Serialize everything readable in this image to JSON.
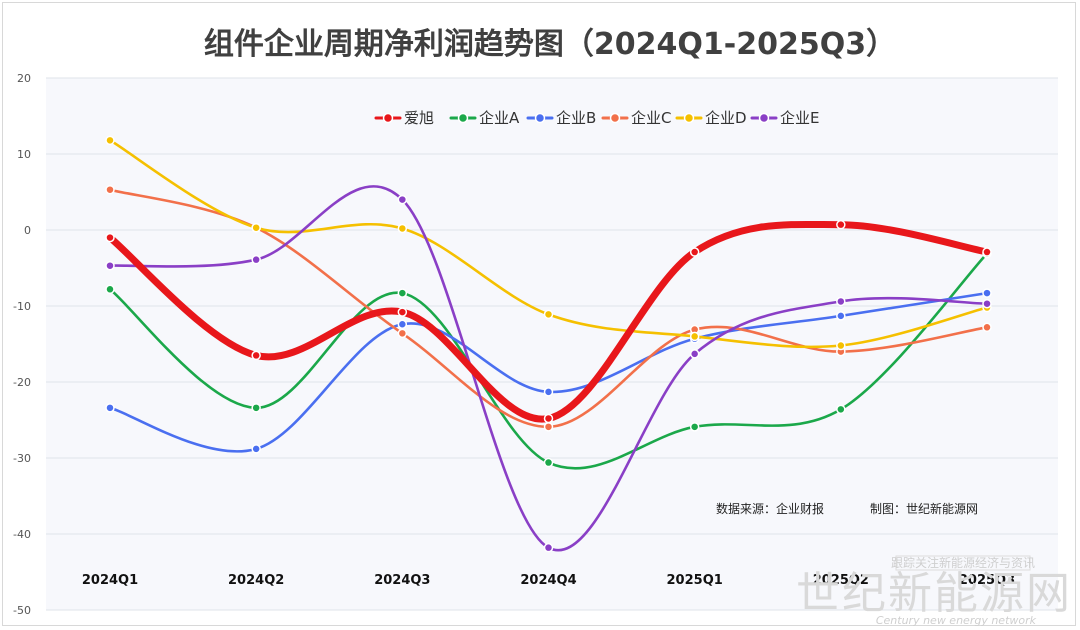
{
  "chart_data": {
    "type": "line",
    "title": "组件企业周期净利润趋势图（2024Q1-2025Q3）",
    "categories": [
      "2024Q1",
      "2024Q2",
      "2024Q3",
      "2024Q4",
      "2025Q1",
      "2025Q2",
      "2025Q3"
    ],
    "ylim": [
      -50,
      20
    ],
    "yticks": [
      20,
      10,
      0,
      -10,
      -20,
      -30,
      -40,
      -50
    ],
    "grid": true,
    "legend_position": "top-center",
    "series": [
      {
        "name": "爱旭",
        "color": "#e8171b",
        "values": [
          -1,
          -16.5,
          -10.8,
          -24.8,
          -2.9,
          0.7,
          -2.9
        ],
        "emphasis": true
      },
      {
        "name": "企业A",
        "color": "#1ba84a",
        "values": [
          -7.8,
          -23.4,
          -8.3,
          -30.6,
          -25.9,
          -23.6,
          -3.1
        ]
      },
      {
        "name": "企业B",
        "color": "#4a6ff0",
        "values": [
          -23.4,
          -28.8,
          -12.4,
          -21.3,
          -14.3,
          -11.3,
          -8.3
        ]
      },
      {
        "name": "企业C",
        "color": "#f2704a",
        "values": [
          5.3,
          0.3,
          -13.6,
          -25.9,
          -13.1,
          -16,
          -12.8
        ]
      },
      {
        "name": "企业D",
        "color": "#f5c000",
        "values": [
          11.8,
          0.3,
          0.2,
          -11.1,
          -14,
          -15.2,
          -10.2
        ]
      },
      {
        "name": "企业E",
        "color": "#8a3fc6",
        "values": [
          -4.7,
          -3.9,
          4,
          -41.8,
          -16.3,
          -9.4,
          -9.7
        ]
      }
    ],
    "annotations": {
      "source": "数据来源：企业财报",
      "maker": "制图：世纪新能源网"
    }
  },
  "watermark": {
    "name": "世纪新能源网",
    "sub": "Century new energy network",
    "slogan": "跟踪关注新能源经济与资讯"
  }
}
